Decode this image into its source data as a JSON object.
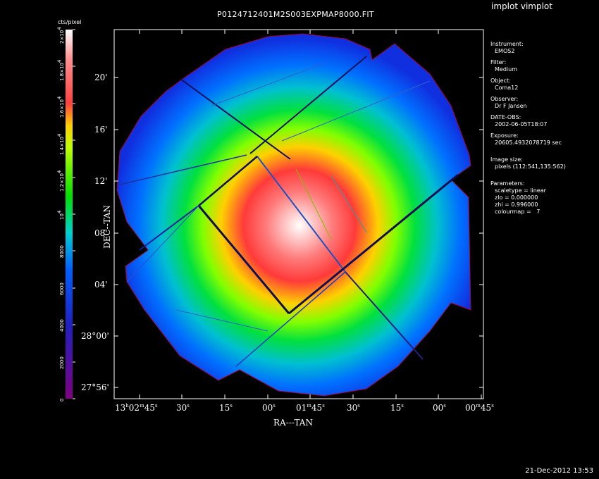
{
  "header": {
    "app_title": "implot vimplot",
    "file_title": "P0124712401M2S003EXPMAP8000.FIT",
    "timestamp": "21-Dec-2012 13:53"
  },
  "info_panel": {
    "instrument_label": "Instrument:",
    "instrument_value": "EMOS2",
    "filter_label": "Filter:",
    "filter_value": "Medium",
    "object_label": "Object:",
    "object_value": "Coma12",
    "observer_label": "Observer:",
    "observer_value": "Dr F Jansen",
    "date_label": "DATE-OBS:",
    "date_value": "2002-06-05T18:07",
    "exposure_label": "Exposure:",
    "exposure_value": "20605.4932078719 sec",
    "image_size_label": "Image size:",
    "image_size_value": "pixels (112:541,135:562)",
    "parameters_label": "Parameters:",
    "param_scaletype": "scaletype = linear",
    "param_zlo": "zlo = 0.000000",
    "param_zhi": "zhi = 0.996000",
    "param_colourmap": "colourmap =   7"
  },
  "chart_data": {
    "type": "heatmap",
    "title": "P0124712401M2S003EXPMAP8000.FIT",
    "xlabel": "RA---TAN",
    "ylabel": "DEC--TAN",
    "x_ticks": [
      {
        "main": "13",
        "s1": "h",
        "main2": "02",
        "s2": "m",
        "main3": "45",
        "s3": "s"
      },
      {
        "main": "30",
        "s1": "s"
      },
      {
        "main": "15",
        "s1": "s"
      },
      {
        "main": "00",
        "s1": "s"
      },
      {
        "main": "01",
        "s1": "m",
        "main2": "45",
        "s2": "s"
      },
      {
        "main": "30",
        "s1": "s"
      },
      {
        "main": "15",
        "s1": "s"
      },
      {
        "main": "00",
        "s1": "s"
      },
      {
        "main": "00",
        "s1": "m",
        "main2": "45",
        "s2": "s"
      }
    ],
    "y_ticks": [
      "20'",
      "16'",
      "12'",
      "08'",
      "04'",
      "28°00'",
      "27°56'"
    ],
    "colorbar": {
      "unit": "cts/pixel",
      "range": [
        0,
        20000
      ],
      "ticks": [
        "0",
        "2000",
        "4000",
        "6000",
        "8000",
        "10^4",
        "1.2x10^4",
        "1.4x10^4",
        "1.6x10^4",
        "1.8x10^4",
        "2x10^4"
      ]
    },
    "peak_value": 20000,
    "colourmap": "rainbow (purple-blue-cyan-green-yellow-red-white)"
  }
}
